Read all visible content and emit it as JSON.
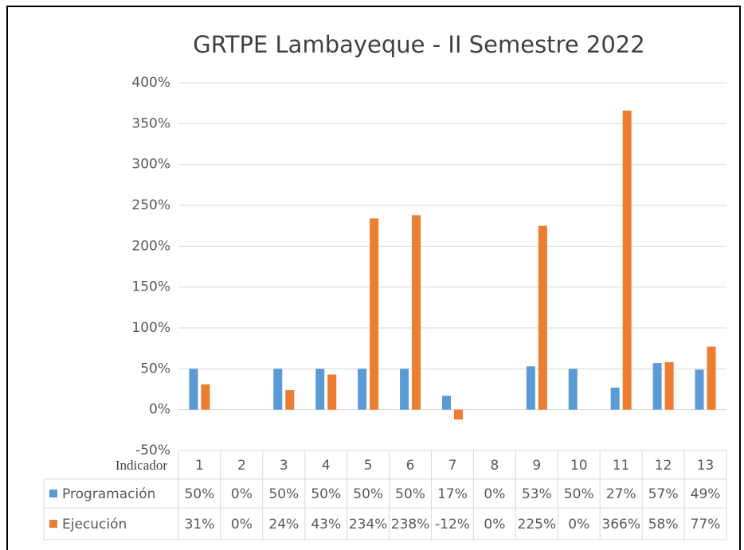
{
  "chart_data": {
    "type": "bar",
    "title": "GRTPE Lambayeque - II Semestre 2022",
    "x_label": "Indicador",
    "categories": [
      "1",
      "2",
      "3",
      "4",
      "5",
      "6",
      "7",
      "8",
      "9",
      "10",
      "11",
      "12",
      "13"
    ],
    "series": [
      {
        "name": "Programación",
        "color": "#5b9bd5",
        "values": [
          50,
          0,
          50,
          50,
          50,
          50,
          17,
          0,
          53,
          50,
          27,
          57,
          49
        ],
        "value_labels": [
          "50%",
          "0%",
          "50%",
          "50%",
          "50%",
          "50%",
          "17%",
          "0%",
          "53%",
          "50%",
          "27%",
          "57%",
          "49%"
        ]
      },
      {
        "name": "Ejecución",
        "color": "#ed7d31",
        "values": [
          31,
          0,
          24,
          43,
          234,
          238,
          -12,
          0,
          225,
          0,
          366,
          58,
          77
        ],
        "value_labels": [
          "31%",
          "0%",
          "24%",
          "43%",
          "234%",
          "238%",
          "-12%",
          "0%",
          "225%",
          "0%",
          "366%",
          "58%",
          "77%"
        ]
      }
    ],
    "ylim": [
      -50,
      400
    ],
    "yticks": [
      {
        "value": -50,
        "label": "-50%"
      },
      {
        "value": 0,
        "label": "0%"
      },
      {
        "value": 50,
        "label": "50%"
      },
      {
        "value": 100,
        "label": "100%"
      },
      {
        "value": 150,
        "label": "150%"
      },
      {
        "value": 200,
        "label": "200%"
      },
      {
        "value": 250,
        "label": "250%"
      },
      {
        "value": 300,
        "label": "300%"
      },
      {
        "value": 350,
        "label": "350%"
      },
      {
        "value": 400,
        "label": "400%"
      }
    ],
    "grid": true
  }
}
